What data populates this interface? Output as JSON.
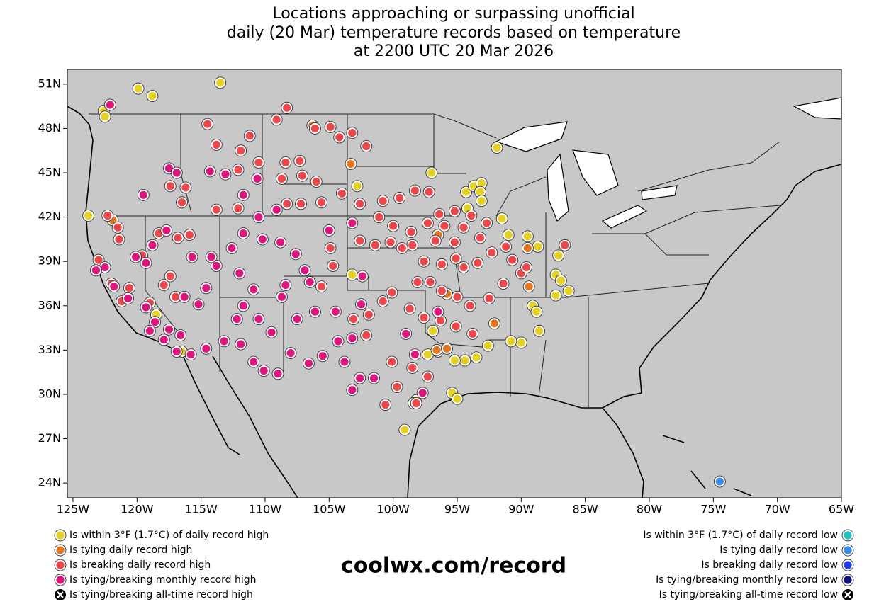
{
  "chart_data": {
    "type": "scatter",
    "title_lines": [
      "Locations approaching or surpassing unofficial",
      "daily (20 Mar) temperature records based on temperature",
      "at 2200 UTC 20 Mar 2026"
    ],
    "footer": "coolwx.com/record",
    "xlim": [
      -125.44,
      -65
    ],
    "ylim": [
      23,
      52
    ],
    "xticks": [
      {
        "value": -125,
        "label": "125W"
      },
      {
        "value": -120,
        "label": "120W"
      },
      {
        "value": -115,
        "label": "115W"
      },
      {
        "value": -110,
        "label": "110W"
      },
      {
        "value": -105,
        "label": "105W"
      },
      {
        "value": -100,
        "label": "100W"
      },
      {
        "value": -95,
        "label": "95W"
      },
      {
        "value": -90,
        "label": "90W"
      },
      {
        "value": -85,
        "label": "85W"
      },
      {
        "value": -80,
        "label": "80W"
      },
      {
        "value": -75,
        "label": "75W"
      },
      {
        "value": -70,
        "label": "70W"
      },
      {
        "value": -65,
        "label": "65W"
      }
    ],
    "yticks": [
      {
        "value": 24,
        "label": "24N"
      },
      {
        "value": 27,
        "label": "27N"
      },
      {
        "value": 30,
        "label": "30N"
      },
      {
        "value": 33,
        "label": "33N"
      },
      {
        "value": 36,
        "label": "36N"
      },
      {
        "value": 39,
        "label": "39N"
      },
      {
        "value": 42,
        "label": "42N"
      },
      {
        "value": 45,
        "label": "45N"
      },
      {
        "value": 48,
        "label": "48N"
      },
      {
        "value": 51,
        "label": "51N"
      }
    ],
    "series": [
      {
        "name": "Is within 3°F (1.7°C) of daily record high",
        "color": "#e6d21e",
        "legend_side": "left",
        "marker": "circle",
        "x": [
          -122.6,
          -122.5,
          -119.9,
          -118.8,
          -113.5,
          -123.8,
          -118.5,
          -116.5,
          -103.2,
          -102.8,
          -97.0,
          -91.9,
          -94.3,
          -93.7,
          -93.1,
          -93.2,
          -93.1,
          -94.2,
          -91.5,
          -91.0,
          -89.5,
          -88.7,
          -87.1,
          -87.3,
          -86.9,
          -86.3,
          -87.3,
          -89.1,
          -88.8,
          -88.6,
          -90.0,
          -90.8,
          -92.6,
          -93.5,
          -94.4,
          -95.2,
          -96.9,
          -96.5,
          -97.3,
          -95.4,
          -95.0,
          -98.2,
          -98.4,
          -99.1
        ],
        "y": [
          49.2,
          48.8,
          50.7,
          50.2,
          51.1,
          42.1,
          35.4,
          32.9,
          38.1,
          44.1,
          45.0,
          46.7,
          43.7,
          44.1,
          44.3,
          43.7,
          43.1,
          42.6,
          41.9,
          40.8,
          40.7,
          40.0,
          39.4,
          38.1,
          37.7,
          37.0,
          36.7,
          36.0,
          35.6,
          34.3,
          33.5,
          33.6,
          33.3,
          32.5,
          32.3,
          32.3,
          34.3,
          32.9,
          32.7,
          30.1,
          29.7,
          29.6,
          29.4,
          27.6
        ]
      },
      {
        "name": "Is tying daily record high",
        "color": "#e5761e",
        "legend_side": "left",
        "marker": "circle",
        "x": [
          -121.9,
          -106.3,
          -103.3,
          -96.5,
          -89.5,
          -89.4,
          -95.8,
          -92.1,
          -96.6,
          -95.8
        ],
        "y": [
          41.8,
          48.2,
          45.6,
          40.8,
          39.9,
          37.3,
          36.8,
          34.8,
          33.0,
          33.1
        ]
      },
      {
        "name": "Is breaking daily record high",
        "color": "#f0464a",
        "legend_side": "left",
        "marker": "circle",
        "x": [
          -122.3,
          -121.5,
          -121.4,
          -123.0,
          -122.0,
          -120.6,
          -121.2,
          -119.0,
          -117.9,
          -115.9,
          -116.8,
          -118.3,
          -119.6,
          -117.4,
          -117.0,
          -112.1,
          -113.8,
          -116.2,
          -117.4,
          -116.5,
          -114.5,
          -113.8,
          -111.9,
          -111.2,
          -112.1,
          -110.5,
          -109.1,
          -108.3,
          -107.3,
          -106.1,
          -104.9,
          -104.2,
          -103.2,
          -102.1,
          -106.0,
          -107.1,
          -108.7,
          -108.3,
          -107.2,
          -105.6,
          -104.0,
          -102.6,
          -100.8,
          -99.5,
          -98.3,
          -97.2,
          -101.1,
          -100.0,
          -98.6,
          -97.3,
          -96.0,
          -95.2,
          -96.7,
          -98.5,
          -99.3,
          -100.2,
          -101.4,
          -102.6,
          -97.6,
          -96.2,
          -95.1,
          -94.5,
          -93.4,
          -92.3,
          -91.2,
          -93.2,
          -94.5,
          -92.7,
          -93.9,
          -95.2,
          -96.4,
          -98.1,
          -97.1,
          -96.2,
          -95.0,
          -94.0,
          -92.5,
          -91.4,
          -90.0,
          -89.6,
          -90.7,
          -100.1,
          -100.8,
          -98.7,
          -97.6,
          -96.3,
          -95.1,
          -93.8,
          -101.9,
          -103.1,
          -102.1,
          -100.1,
          -98.5,
          -97.3,
          -99.7,
          -100.6,
          -98.2,
          -86.6,
          -108.4,
          -104.9,
          -104.7,
          -105.6
        ],
        "y": [
          42.1,
          41.3,
          40.5,
          39.1,
          37.5,
          37.2,
          36.3,
          36.2,
          37.4,
          40.8,
          40.6,
          40.9,
          39.4,
          38.0,
          36.6,
          42.6,
          42.5,
          44.0,
          44.1,
          43.0,
          48.3,
          46.9,
          46.5,
          47.5,
          45.2,
          45.7,
          48.6,
          49.4,
          45.8,
          48.0,
          48.1,
          47.4,
          47.7,
          46.8,
          44.4,
          44.8,
          44.6,
          42.9,
          42.9,
          43.0,
          43.6,
          42.9,
          43.1,
          43.3,
          43.8,
          43.7,
          42.0,
          41.4,
          41.0,
          41.6,
          41.4,
          40.3,
          40.4,
          40.1,
          39.9,
          40.3,
          40.1,
          40.4,
          39.0,
          38.8,
          39.2,
          38.6,
          38.9,
          39.6,
          40.0,
          40.6,
          41.3,
          41.6,
          42.1,
          42.4,
          42.2,
          37.6,
          37.6,
          37.0,
          36.6,
          36.0,
          36.5,
          37.5,
          38.2,
          38.6,
          39.1,
          36.9,
          36.3,
          35.8,
          35.2,
          35.0,
          34.6,
          34.1,
          35.4,
          35.1,
          34.0,
          32.2,
          31.8,
          31.2,
          30.5,
          29.3,
          29.4,
          40.1,
          45.7,
          39.9,
          38.7,
          37.3
        ]
      },
      {
        "name": "Is tying/breaking monthly record high",
        "color": "#e0147c",
        "legend_side": "left",
        "marker": "circle",
        "x": [
          -122.1,
          -117.5,
          -116.9,
          -119.5,
          -118.8,
          -117.7,
          -119.3,
          -120.1,
          -122.5,
          -123.2,
          -121.8,
          -120.7,
          -119.3,
          -118.6,
          -117.5,
          -116.6,
          -117.9,
          -119.0,
          -116.9,
          -115.8,
          -114.6,
          -113.2,
          -111.9,
          -110.9,
          -110.1,
          -109.0,
          -112.2,
          -111.7,
          -110.5,
          -109.5,
          -108.0,
          -106.6,
          -105.5,
          -104.3,
          -103.2,
          -104.5,
          -106.1,
          -107.5,
          -108.7,
          -108.4,
          -106.5,
          -106.9,
          -107.6,
          -108.8,
          -110.2,
          -111.7,
          -112.6,
          -113.8,
          -112.0,
          -110.9,
          -114.6,
          -115.2,
          -116.3,
          -114.2,
          -115.7,
          -111.7,
          -110.5,
          -109.1,
          -110.6,
          -113.1,
          -114.3,
          -105.0,
          -103.2,
          -102.4,
          -102.5,
          -103.8,
          -102.6,
          -103.2,
          -99.0,
          -98.3,
          -97.7,
          -96.5,
          -101.5
        ],
        "y": [
          49.6,
          45.3,
          45.0,
          43.5,
          40.1,
          41.1,
          38.9,
          39.3,
          38.6,
          38.4,
          37.3,
          36.5,
          35.9,
          34.9,
          34.4,
          34.0,
          33.7,
          34.3,
          32.9,
          32.7,
          33.1,
          33.6,
          33.4,
          32.2,
          31.6,
          31.4,
          35.1,
          36.0,
          35.1,
          34.2,
          32.8,
          32.1,
          32.6,
          33.6,
          33.8,
          35.6,
          35.6,
          35.1,
          36.6,
          37.4,
          37.6,
          38.4,
          39.5,
          40.3,
          40.5,
          40.9,
          39.9,
          38.7,
          38.2,
          37.1,
          37.2,
          36.1,
          36.6,
          39.3,
          39.3,
          43.5,
          42.0,
          42.5,
          44.6,
          44.9,
          45.1,
          41.1,
          41.6,
          38.0,
          36.1,
          32.2,
          31.1,
          30.3,
          34.1,
          32.7,
          30.1,
          35.6,
          31.1
        ]
      },
      {
        "name": "Is tying/breaking all-time record high",
        "color": "#000000",
        "legend_side": "left",
        "marker": "x",
        "x": [],
        "y": []
      },
      {
        "name": "Is within 3°F (1.7°C) of daily record low",
        "color": "#1ec4c4",
        "legend_side": "right",
        "marker": "circle",
        "x": [],
        "y": []
      },
      {
        "name": "Is tying daily record low",
        "color": "#3a8cea",
        "legend_side": "right",
        "marker": "circle",
        "x": [
          -74.5
        ],
        "y": [
          24.1
        ]
      },
      {
        "name": "Is breaking daily record low",
        "color": "#1a3cf0",
        "legend_side": "right",
        "marker": "circle",
        "x": [],
        "y": []
      },
      {
        "name": "Is tying/breaking monthly record low",
        "color": "#10127a",
        "legend_side": "right",
        "marker": "circle",
        "x": [],
        "y": []
      },
      {
        "name": "Is tying/breaking all-time record low",
        "color": "#000000",
        "legend_side": "right",
        "marker": "x",
        "x": [],
        "y": []
      }
    ]
  }
}
